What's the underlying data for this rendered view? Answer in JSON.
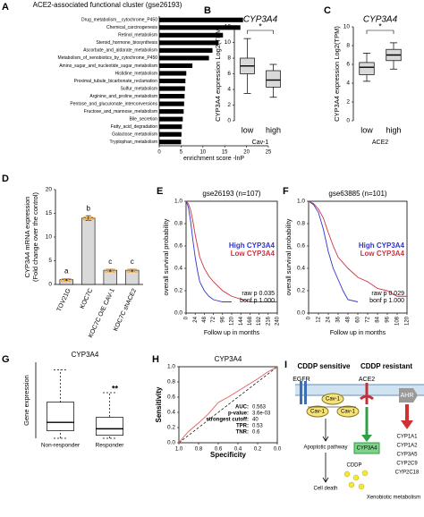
{
  "chart_data": [
    {
      "type": "barh",
      "panel": "A",
      "title": "ACE2-associated functional cluster (gse26193)",
      "xlabel": "enrichment score -lnP",
      "color": "#000000",
      "categories": [
        "Drug_metabolism__cytochrome_P450",
        "Chemical_carcinogenesis",
        "Retinol_metabolism",
        "Steroid_hormone_biosynthesis",
        "Ascorbate_and_aldarate_metabolism",
        "Metabolism_of_xenobiotics_by_cytochrome_P450",
        "Amino_sugar_and_nucleotide_sugar_metabolism",
        "Histidine_metabolism",
        "Proximal_tubule_bicarbonate_reclamation",
        "Sulfur_metabolism",
        "Arginine_and_proline_metabolism",
        "Pentose_and_glucuronate_interconversions",
        "Fructose_and_mannose_metabolism",
        "Bile_secretion",
        "Fatty_acid_degradation",
        "Galactose_metabolism",
        "Tryptophan_metabolism"
      ],
      "values": [
        19.2,
        18.6,
        14.6,
        13.6,
        12.2,
        11.4,
        7.6,
        6.2,
        6.0,
        5.9,
        5.8,
        5.7,
        5.6,
        5.4,
        5.2,
        5.1,
        5.0
      ],
      "xlim": [
        0,
        25
      ],
      "xticks": [
        0,
        5,
        10,
        15,
        20,
        25
      ]
    },
    {
      "type": "box",
      "panel": "B",
      "title": "CYP3A4",
      "ylabel": "CYP3A4 expression Log2(TPM)",
      "xlabel": "Cav-1",
      "categories": [
        "low",
        "high"
      ],
      "color": "#d9d9d9",
      "annotation": "*",
      "boxes": [
        {
          "whislo": 3.5,
          "q1": 6.0,
          "med": 7.0,
          "q3": 8.0,
          "whishi": 10.5
        },
        {
          "whislo": 3.0,
          "q1": 4.3,
          "med": 5.2,
          "q3": 6.4,
          "whishi": 7.2
        }
      ],
      "ylim": [
        0,
        12
      ],
      "yticks": [
        0,
        2,
        4,
        6,
        8,
        10,
        12
      ]
    },
    {
      "type": "box",
      "panel": "C",
      "title": "CYP3A4",
      "ylabel": "CYP3A4 expression Log2(TPM)",
      "xlabel": "ACE2",
      "categories": [
        "low",
        "high"
      ],
      "color": "#d9d9d9",
      "annotation": "*",
      "boxes": [
        {
          "whislo": 4.2,
          "q1": 4.9,
          "med": 5.7,
          "q3": 6.2,
          "whishi": 7.2
        },
        {
          "whislo": 5.5,
          "q1": 6.4,
          "med": 7.0,
          "q3": 7.6,
          "whishi": 8.3
        }
      ],
      "ylim": [
        0,
        10
      ],
      "yticks": [
        0,
        2,
        4,
        6,
        8,
        10
      ]
    },
    {
      "type": "bar",
      "panel": "D",
      "ylabel": [
        "CYP3A4 mRNA expression",
        "(Fold change over the control)"
      ],
      "categories": [
        "TOV21G",
        "KOC7C",
        "KOC7C O/E CAV-1",
        "KOC7C shACE2"
      ],
      "values": [
        1.0,
        14.0,
        3.0,
        3.0
      ],
      "errors": [
        0.2,
        0.5,
        0.2,
        0.2
      ],
      "annotations": [
        "a",
        "b",
        "c",
        "c"
      ],
      "color": "#d9d9d9",
      "point_color": "#f4a433",
      "ylim": [
        0,
        20
      ],
      "yticks": [
        0,
        5,
        10,
        15,
        20
      ]
    },
    {
      "type": "km",
      "panel": "E",
      "title": "gse26193 (n=107)",
      "ylabel": "overall survival probability",
      "xlabel": "Follow up in months",
      "legend": "upper right",
      "stats": [
        "raw p 0.035",
        "bonf p 1.000"
      ],
      "series": [
        {
          "name": "High CYP3A4",
          "color": "#3333cc",
          "x": [
            0,
            6,
            12,
            18,
            24,
            30,
            36,
            48,
            60,
            72,
            96,
            120
          ],
          "values": [
            1,
            0.95,
            0.82,
            0.65,
            0.5,
            0.38,
            0.28,
            0.2,
            0.15,
            0.12,
            0.1,
            0.1
          ]
        },
        {
          "name": "Low CYP3A4",
          "color": "#cc3344",
          "x": [
            0,
            6,
            12,
            18,
            24,
            30,
            36,
            48,
            60,
            72,
            96,
            120,
            168,
            240
          ],
          "values": [
            1,
            0.98,
            0.92,
            0.82,
            0.7,
            0.6,
            0.5,
            0.4,
            0.33,
            0.28,
            0.2,
            0.15,
            0.1,
            0.1
          ]
        }
      ],
      "xlim": [
        0,
        240
      ],
      "xticks": [
        0,
        24,
        48,
        72,
        96,
        120,
        144,
        168,
        192,
        216,
        240
      ],
      "ylim": [
        0,
        1
      ],
      "yticks": [
        {
          "value": 0,
          "label": "0.0"
        },
        0.2,
        0.4,
        0.6,
        0.8,
        {
          "value": 1,
          "label": "1.0"
        }
      ]
    },
    {
      "type": "km",
      "panel": "F",
      "title": "gse63885 (n=101)",
      "ylabel": "overall survival probability",
      "xlabel": "Follow up in months",
      "legend": "upper right",
      "stats": [
        "raw p 0.029",
        "bonf p 1.000"
      ],
      "series": [
        {
          "name": "High CYP3A4",
          "color": "#3333cc",
          "x": [
            0,
            6,
            12,
            18,
            24,
            30,
            36,
            42,
            48,
            60
          ],
          "values": [
            1,
            0.97,
            0.9,
            0.75,
            0.55,
            0.4,
            0.3,
            0.2,
            0.12,
            0.1
          ]
        },
        {
          "name": "Low CYP3A4",
          "color": "#cc3344",
          "x": [
            0,
            6,
            12,
            18,
            24,
            30,
            36,
            48,
            60,
            72,
            84,
            96,
            108,
            120
          ],
          "values": [
            1,
            0.98,
            0.93,
            0.85,
            0.72,
            0.6,
            0.5,
            0.4,
            0.32,
            0.28,
            0.22,
            0.2,
            0.15,
            0.15
          ]
        }
      ],
      "xlim": [
        0,
        120
      ],
      "xticks": [
        0,
        12,
        24,
        36,
        48,
        60,
        72,
        84,
        96,
        108,
        120
      ],
      "ylim": [
        0,
        1
      ],
      "yticks": [
        {
          "value": 0,
          "label": "0.0"
        },
        0.2,
        0.4,
        0.6,
        0.8,
        {
          "value": 1,
          "label": "1.0"
        }
      ]
    },
    {
      "type": "box",
      "panel": "G",
      "title": "CYP3A4",
      "ylabel": "Gene expression",
      "categories": [
        "Non-responder",
        "Responder"
      ],
      "color": "#ffffff",
      "annotation": "**",
      "boxes": [
        {
          "whislo": 0,
          "q1": 20,
          "med": 42,
          "q3": 95,
          "whishi": 180
        },
        {
          "whislo": 0,
          "q1": 8,
          "med": 25,
          "q3": 55,
          "whishi": 120
        }
      ],
      "ylim": [
        0,
        200
      ]
    },
    {
      "type": "roc",
      "panel": "H",
      "title": "CYP3A4",
      "xlabel": "Specificity",
      "ylabel": "Sensitivity",
      "color": "#e06060",
      "x": [
        1,
        0.95,
        0.9,
        0.8,
        0.7,
        0.6,
        0.5,
        0.4,
        0.3,
        0.2,
        0.1,
        0
      ],
      "values": [
        0,
        0.08,
        0.15,
        0.26,
        0.38,
        0.53,
        0.6,
        0.68,
        0.76,
        0.84,
        0.93,
        1
      ],
      "stats": [
        {
          "label": "AUC:",
          "value": 0.563
        },
        {
          "label": "p-value:",
          "value": "3.6e-03"
        },
        {
          "label": "strongest cutoff:",
          "value": 40
        },
        {
          "label": "TPR:",
          "value": 0.53
        },
        {
          "label": "TNR:",
          "value": 0.6
        }
      ],
      "xlim": [
        1,
        0
      ],
      "xticks": [
        {
          "value": 1,
          "label": "1.0"
        },
        0.8,
        0.6,
        0.4,
        0.2,
        {
          "value": 0,
          "label": "0.0"
        }
      ],
      "ylim": [
        0,
        1
      ],
      "yticks": [
        {
          "value": 0,
          "label": "0.0"
        },
        0.2,
        0.4,
        0.6,
        0.8,
        {
          "value": 1,
          "label": "1.0"
        }
      ]
    }
  ],
  "diagram": {
    "panel": "I",
    "sensitive": "CDDP sensitive",
    "resistant": "CDDP resistant",
    "egfr": "EGFR",
    "ace2": "ACE2",
    "cav": [
      "Cav-1",
      "Cav-1",
      "Cav-1"
    ],
    "ahr": "AHR",
    "apoptotic": "Apoptotic pathway",
    "death": "Cell death",
    "cddp": "CDDP",
    "cyp": "CYP3A4",
    "xeno": "Xenobiotic metabolism",
    "targets": [
      "CYP1A1",
      "CYP1A2",
      "CYP3A5",
      "CYP2C9",
      "CYP2C18"
    ]
  }
}
